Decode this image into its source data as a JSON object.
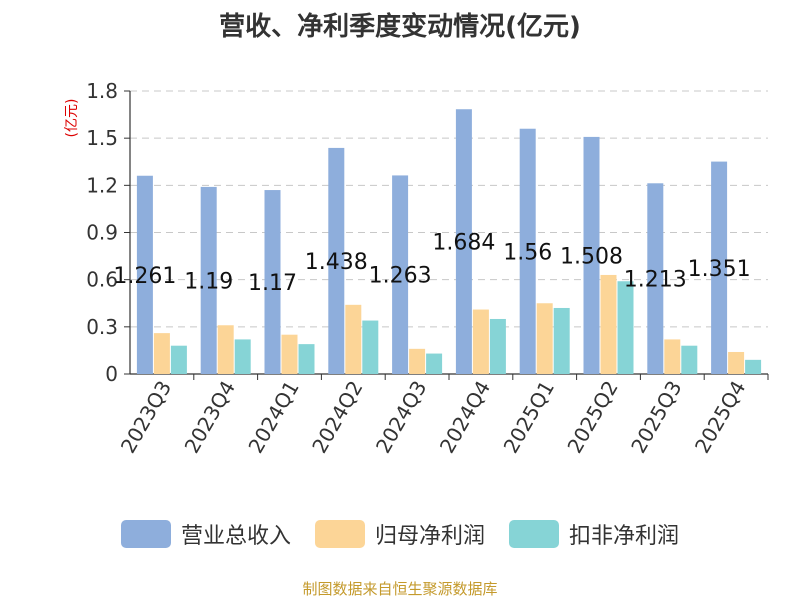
{
  "title": "营收、净利季度变动情况(亿元)",
  "source": "制图数据来自恒生聚源数据库",
  "chart_data": {
    "type": "bar",
    "title": "营收、净利季度变动情况(亿元)",
    "ylabel": "(亿元)",
    "ylim": [
      0,
      1.8
    ],
    "yticks": [
      "0",
      "0.3",
      "0.6",
      "0.9",
      "1.2",
      "1.5",
      "1.8"
    ],
    "grid": true,
    "legend_position": "bottom",
    "categories": [
      "2023Q3",
      "2023Q4",
      "2024Q1",
      "2024Q2",
      "2024Q3",
      "2024Q4",
      "2025Q1",
      "2025Q2",
      "2025Q3",
      "2025Q4"
    ],
    "series": [
      {
        "name": "营业总收入",
        "color": "#8eaedc",
        "values": [
          1.261,
          1.19,
          1.17,
          1.438,
          1.263,
          1.684,
          1.56,
          1.508,
          1.213,
          1.351
        ],
        "labels": [
          "1.261",
          "1.19",
          "1.17",
          "1.438",
          "1.263",
          "1.684",
          "1.56",
          "1.508",
          "1.213",
          "1.351"
        ]
      },
      {
        "name": "归母净利润",
        "color": "#fcd597",
        "values": [
          0.26,
          0.31,
          0.25,
          0.44,
          0.16,
          0.41,
          0.45,
          0.63,
          0.22,
          0.14
        ]
      },
      {
        "name": "扣非净利润",
        "color": "#86d4d6",
        "values": [
          0.18,
          0.22,
          0.19,
          0.34,
          0.13,
          0.35,
          0.42,
          0.59,
          0.18,
          0.09
        ]
      }
    ]
  }
}
